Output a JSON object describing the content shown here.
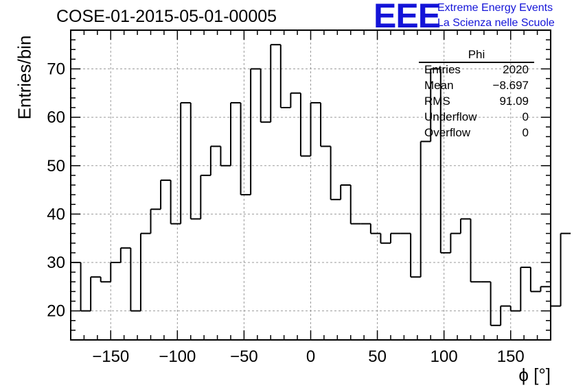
{
  "header": {
    "title": "COSE-01-2015-05-01-00005",
    "logo_mark": "EEE",
    "logo_line1": "Extreme Energy Events",
    "logo_line2": "La Scienza nelle Scuole",
    "logo_color": "#1414d8"
  },
  "stats_box": {
    "name": "Phi",
    "rows": [
      {
        "label": "Entries",
        "value": "2020"
      },
      {
        "label": "Mean",
        "value": "−8.697"
      },
      {
        "label": "RMS",
        "value": "91.09"
      },
      {
        "label": "Underflow",
        "value": "0"
      },
      {
        "label": "Overflow",
        "value": "0"
      }
    ]
  },
  "chart_data": {
    "type": "histogram",
    "xlabel": "ϕ [°]",
    "ylabel": "Entries/bin",
    "xlim": [
      -180,
      180
    ],
    "ylim": [
      14,
      78
    ],
    "bin_width": 7.5,
    "bin_edges_start": -180,
    "values": [
      30,
      20,
      27,
      26,
      30,
      33,
      20,
      36,
      41,
      47,
      38,
      63,
      39,
      48,
      54,
      50,
      63,
      44,
      70,
      59,
      75,
      62,
      65,
      52,
      63,
      54,
      43,
      46,
      38,
      38,
      36,
      34,
      36,
      36,
      27,
      55,
      70,
      32,
      36,
      39,
      26,
      26,
      17,
      21,
      20,
      29,
      24,
      25,
      21,
      36
    ],
    "x_ticks": [
      -150,
      -100,
      -50,
      0,
      50,
      100,
      150
    ],
    "x_tick_labels": [
      "−150",
      "−100",
      "−50",
      "0",
      "50",
      "100",
      "150"
    ],
    "y_ticks": [
      20,
      30,
      40,
      50,
      60,
      70
    ],
    "y_tick_labels": [
      "20",
      "30",
      "40",
      "50",
      "60",
      "70"
    ],
    "grid": true,
    "line_color": "#000000"
  }
}
